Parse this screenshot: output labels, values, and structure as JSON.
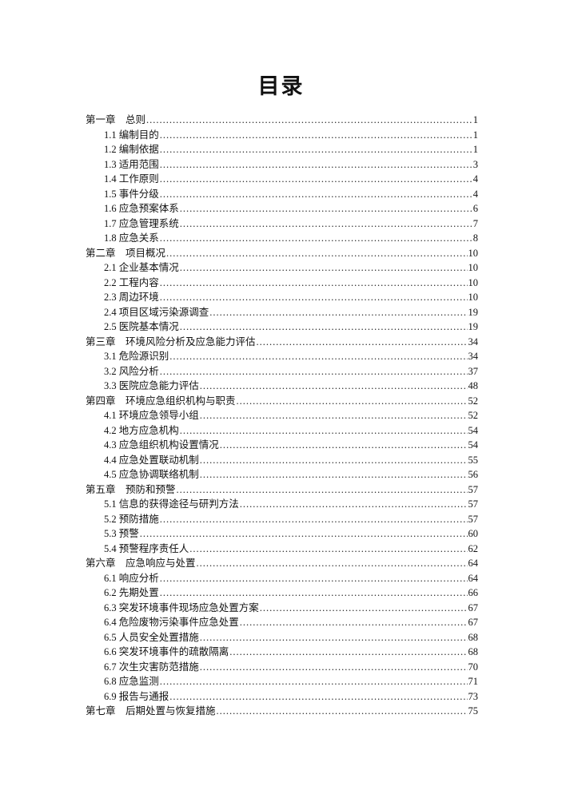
{
  "title": "目录",
  "entries": [
    {
      "label": "第一章　总则",
      "page": "1",
      "level": 1
    },
    {
      "label": "1.1 编制目的",
      "page": "1",
      "level": 2
    },
    {
      "label": "1.2 编制依据",
      "page": "1",
      "level": 2
    },
    {
      "label": "1.3 适用范围",
      "page": "3",
      "level": 2
    },
    {
      "label": "1.4 工作原则",
      "page": "4",
      "level": 2
    },
    {
      "label": "1.5 事件分级",
      "page": "4",
      "level": 2
    },
    {
      "label": "1.6 应急预案体系",
      "page": "6",
      "level": 2
    },
    {
      "label": "1.7 应急管理系统",
      "page": "7",
      "level": 2
    },
    {
      "label": "1.8 应急关系",
      "page": "8",
      "level": 2
    },
    {
      "label": "第二章　项目概况",
      "page": "10",
      "level": 1
    },
    {
      "label": "2.1 企业基本情况",
      "page": "10",
      "level": 2
    },
    {
      "label": "2.2 工程内容",
      "page": "10",
      "level": 2
    },
    {
      "label": "2.3 周边环境",
      "page": "10",
      "level": 2
    },
    {
      "label": "2.4 项目区域污染源调查",
      "page": "19",
      "level": 2
    },
    {
      "label": "2.5 医院基本情况",
      "page": "19",
      "level": 2
    },
    {
      "label": "第三章　环境风险分析及应急能力评估",
      "page": "34",
      "level": 1
    },
    {
      "label": "3.1 危险源识别",
      "page": "34",
      "level": 2
    },
    {
      "label": "3.2 风险分析",
      "page": "37",
      "level": 2
    },
    {
      "label": "3.3 医院应急能力评估",
      "page": "48",
      "level": 2
    },
    {
      "label": "第四章　环境应急组织机构与职责",
      "page": "52",
      "level": 1
    },
    {
      "label": "4.1 环境应急领导小组",
      "page": "52",
      "level": 2
    },
    {
      "label": "4.2 地方应急机构",
      "page": "54",
      "level": 2
    },
    {
      "label": "4.3 应急组织机构设置情况",
      "page": "54",
      "level": 2
    },
    {
      "label": "4.4 应急处置联动机制",
      "page": "55",
      "level": 2
    },
    {
      "label": "4.5 应急协调联络机制",
      "page": "56",
      "level": 2
    },
    {
      "label": "第五章　预防和预警",
      "page": "57",
      "level": 1
    },
    {
      "label": "5.1 信息的获得途径与研判方法",
      "page": "57",
      "level": 2
    },
    {
      "label": "5.2 预防措施",
      "page": "57",
      "level": 2
    },
    {
      "label": "5.3 预警",
      "page": "60",
      "level": 2
    },
    {
      "label": "5.4 预警程序责任人",
      "page": "62",
      "level": 2
    },
    {
      "label": "第六章　应急响应与处置",
      "page": "64",
      "level": 1
    },
    {
      "label": "6.1 响应分析",
      "page": "64",
      "level": 2
    },
    {
      "label": "6.2 先期处置",
      "page": "66",
      "level": 2
    },
    {
      "label": "6.3 突发环境事件现场应急处置方案",
      "page": "67",
      "level": 2
    },
    {
      "label": "6.4 危险废物污染事件应急处置",
      "page": "67",
      "level": 2
    },
    {
      "label": "6.5 人员安全处置措施",
      "page": "68",
      "level": 2
    },
    {
      "label": "6.6 突发环境事件的疏散隔离",
      "page": "68",
      "level": 2
    },
    {
      "label": "6.7 次生灾害防范措施",
      "page": "70",
      "level": 2
    },
    {
      "label": "6.8 应急监测",
      "page": "71",
      "level": 2
    },
    {
      "label": "6.9 报告与通报",
      "page": "73",
      "level": 2
    },
    {
      "label": "第七章　后期处置与恢复措施",
      "page": "75",
      "level": 1
    }
  ]
}
